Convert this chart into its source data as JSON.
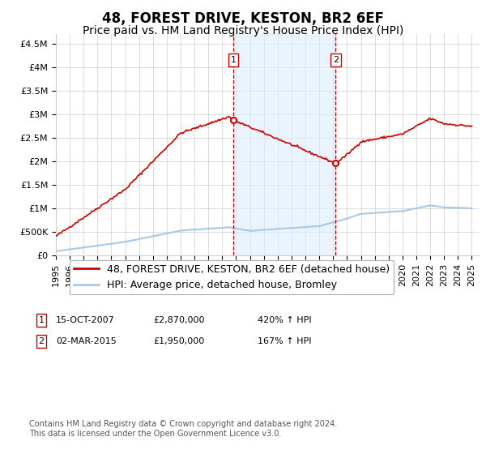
{
  "title": "48, FOREST DRIVE, KESTON, BR2 6EF",
  "subtitle": "Price paid vs. HM Land Registry's House Price Index (HPI)",
  "ylabel_ticks": [
    "£0",
    "£500K",
    "£1M",
    "£1.5M",
    "£2M",
    "£2.5M",
    "£3M",
    "£3.5M",
    "£4M",
    "£4.5M"
  ],
  "ytick_values": [
    0,
    500000,
    1000000,
    1500000,
    2000000,
    2500000,
    3000000,
    3500000,
    4000000,
    4500000
  ],
  "ylim": [
    0,
    4700000
  ],
  "xlim_start": 1995.0,
  "xlim_end": 2025.5,
  "transaction1": {
    "date_num": 2007.79,
    "price": 2870000,
    "label": "1",
    "date_str": "15-OCT-2007"
  },
  "transaction2": {
    "date_num": 2015.17,
    "price": 1950000,
    "label": "2",
    "date_str": "02-MAR-2015"
  },
  "hpi_line_color": "#a8c8e8",
  "price_line_color": "#cc0000",
  "vline_color": "#cc0000",
  "shade_color": "#ddeeff",
  "grid_color": "#cccccc",
  "bg_color": "#ffffff",
  "title_fontsize": 12,
  "subtitle_fontsize": 10,
  "tick_fontsize": 8,
  "legend_fontsize": 9,
  "footnote_text": "Contains HM Land Registry data © Crown copyright and database right 2024.\nThis data is licensed under the Open Government Licence v3.0.",
  "legend_line1": "48, FOREST DRIVE, KESTON, BR2 6EF (detached house)",
  "legend_line2": "HPI: Average price, detached house, Bromley",
  "ann1_date": "15-OCT-2007",
  "ann1_price": "£2,870,000",
  "ann1_pct": "420% ↑ HPI",
  "ann2_date": "02-MAR-2015",
  "ann2_price": "£1,950,000",
  "ann2_pct": "167% ↑ HPI"
}
